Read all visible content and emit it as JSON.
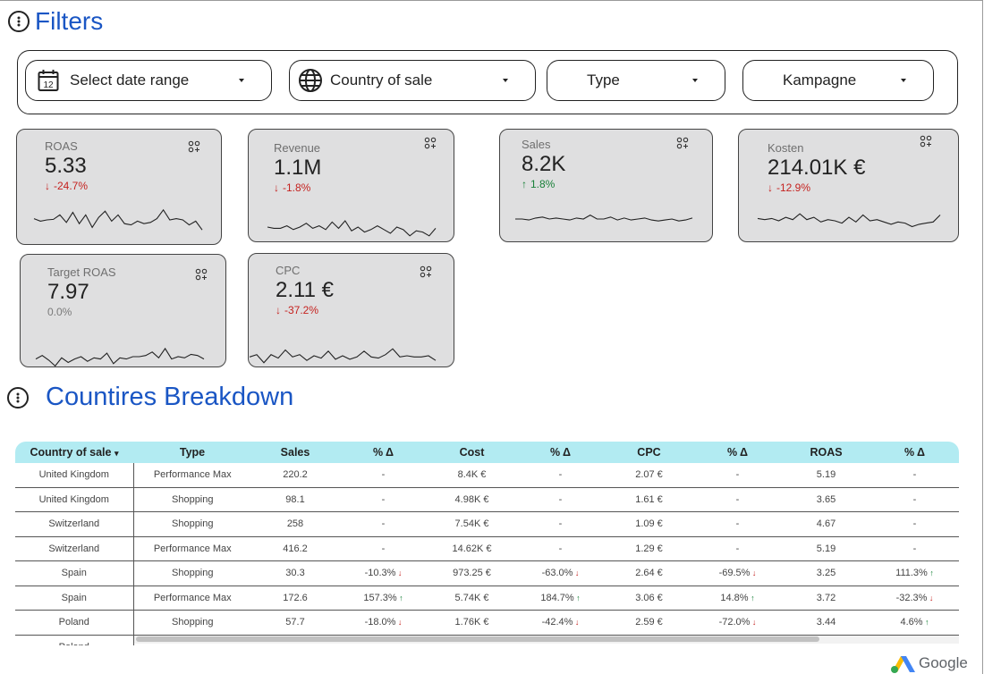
{
  "filters_title": "Filters",
  "filters": {
    "date_range": "Select date range",
    "date_icon_day": "12",
    "country": "Country of sale",
    "type": "Type",
    "campaign": "Kampagne"
  },
  "scorecards": [
    {
      "title": "ROAS",
      "value": "5.33",
      "delta": "-24.7%",
      "direction": "down",
      "spark": [
        0.45,
        0.55,
        0.5,
        0.48,
        0.3,
        0.6,
        0.2,
        0.65,
        0.3,
        0.8,
        0.4,
        0.15,
        0.55,
        0.3,
        0.65,
        0.7,
        0.55,
        0.65,
        0.6,
        0.45,
        0.1,
        0.5,
        0.45,
        0.5,
        0.7,
        0.55,
        0.9
      ]
    },
    {
      "title": "Revenue",
      "value": "1.1M",
      "delta": "-1.8%",
      "direction": "down",
      "spark": [
        0.5,
        0.55,
        0.55,
        0.45,
        0.6,
        0.5,
        0.35,
        0.55,
        0.45,
        0.6,
        0.3,
        0.55,
        0.25,
        0.65,
        0.5,
        0.7,
        0.6,
        0.45,
        0.6,
        0.75,
        0.5,
        0.6,
        0.85,
        0.65,
        0.7,
        0.85,
        0.55
      ]
    },
    {
      "title": "Sales",
      "value": "8.2K",
      "delta": "1.8%",
      "direction": "up",
      "spark": [
        0.5,
        0.5,
        0.55,
        0.45,
        0.4,
        0.5,
        0.45,
        0.5,
        0.55,
        0.45,
        0.5,
        0.3,
        0.5,
        0.5,
        0.4,
        0.55,
        0.45,
        0.55,
        0.5,
        0.45,
        0.55,
        0.6,
        0.55,
        0.5,
        0.6,
        0.55,
        0.45
      ]
    },
    {
      "title": "Kosten",
      "value": "214.01K €",
      "delta": "-12.9%",
      "direction": "down",
      "spark": [
        0.4,
        0.45,
        0.4,
        0.5,
        0.35,
        0.45,
        0.2,
        0.45,
        0.35,
        0.55,
        0.45,
        0.5,
        0.6,
        0.35,
        0.55,
        0.25,
        0.5,
        0.45,
        0.55,
        0.65,
        0.55,
        0.6,
        0.75,
        0.65,
        0.6,
        0.55,
        0.25
      ]
    },
    {
      "title": "Target ROAS",
      "value": "7.97",
      "delta": "0.0%",
      "direction": "none",
      "spark": [
        0.6,
        0.45,
        0.65,
        0.9,
        0.55,
        0.75,
        0.6,
        0.5,
        0.7,
        0.55,
        0.6,
        0.35,
        0.8,
        0.55,
        0.6,
        0.5,
        0.5,
        0.45,
        0.3,
        0.55,
        0.15,
        0.6,
        0.5,
        0.55,
        0.4,
        0.45,
        0.6
      ]
    },
    {
      "title": "CPC",
      "value": "2.11 €",
      "delta": "-37.2%",
      "direction": "down",
      "spark": [
        0.55,
        0.45,
        0.8,
        0.45,
        0.6,
        0.25,
        0.55,
        0.45,
        0.7,
        0.5,
        0.6,
        0.3,
        0.65,
        0.5,
        0.65,
        0.55,
        0.3,
        0.55,
        0.6,
        0.45,
        0.2,
        0.55,
        0.5,
        0.55,
        0.55,
        0.5,
        0.7
      ]
    }
  ],
  "breakdown_title": "Countires Breakdown",
  "table": {
    "columns": [
      "Country of sale",
      "Type",
      "Sales",
      "% Δ",
      "Cost",
      "% Δ",
      "CPC",
      "% Δ",
      "ROAS",
      "% Δ"
    ],
    "sort_indicator": "▾",
    "rows": [
      [
        "United Kingdom",
        "Performance Max",
        "220.2",
        "-",
        "8.4K €",
        "-",
        "2.07 €",
        "-",
        "5.19",
        "-"
      ],
      [
        "United Kingdom",
        "Shopping",
        "98.1",
        "-",
        "4.98K €",
        "-",
        "1.61 €",
        "-",
        "3.65",
        "-"
      ],
      [
        "Switzerland",
        "Shopping",
        "258",
        "-",
        "7.54K €",
        "-",
        "1.09 €",
        "-",
        "4.67",
        "-"
      ],
      [
        "Switzerland",
        "Performance Max",
        "416.2",
        "-",
        "14.62K €",
        "-",
        "1.29 €",
        "-",
        "5.19",
        "-"
      ],
      [
        "Spain",
        "Shopping",
        "30.3",
        "-10.3%",
        "973.25 €",
        "-63.0%",
        "2.64 €",
        "-69.5%",
        "3.25",
        "111.3%"
      ],
      [
        "Spain",
        "Performance Max",
        "172.6",
        "157.3%",
        "5.74K €",
        "184.7%",
        "3.06 €",
        "14.8%",
        "3.72",
        "-32.3%"
      ],
      [
        "Poland",
        "Shopping",
        "57.7",
        "-18.0%",
        "1.76K €",
        "-42.4%",
        "2.59 €",
        "-72.0%",
        "3.44",
        "4.6%"
      ],
      [
        "Poland",
        "",
        "",
        "",
        "",
        "",
        "",
        "",
        "",
        ""
      ]
    ]
  },
  "footer": {
    "brand": "Google"
  },
  "colors": {
    "accent": "#1a56c4",
    "header_bg": "#b2ebf2",
    "card_bg": "#dfdfe0",
    "positive": "#188038",
    "negative": "#c5221f"
  }
}
